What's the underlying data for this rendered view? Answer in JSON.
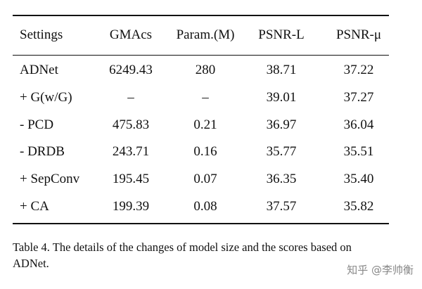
{
  "table": {
    "header": [
      "Settings",
      "GMAcs",
      "Param.(M)",
      "PSNR-L",
      "PSNR-μ"
    ],
    "rows": [
      [
        "ADNet",
        "6249.43",
        "280",
        "38.71",
        "37.22"
      ],
      [
        "+ G(w/G)",
        "–",
        "–",
        "39.01",
        "37.27"
      ],
      [
        "- PCD",
        "475.83",
        "0.21",
        "36.97",
        "36.04"
      ],
      [
        "- DRDB",
        "243.71",
        "0.16",
        "35.77",
        "35.51"
      ],
      [
        "+ SepConv",
        "195.45",
        "0.07",
        "36.35",
        "35.40"
      ],
      [
        "+ CA",
        "199.39",
        "0.08",
        "37.57",
        "35.82"
      ]
    ]
  },
  "caption": "Table 4. The details of the changes of model size and the scores based on ADNet.",
  "watermark": "知乎 @李帅衡"
}
